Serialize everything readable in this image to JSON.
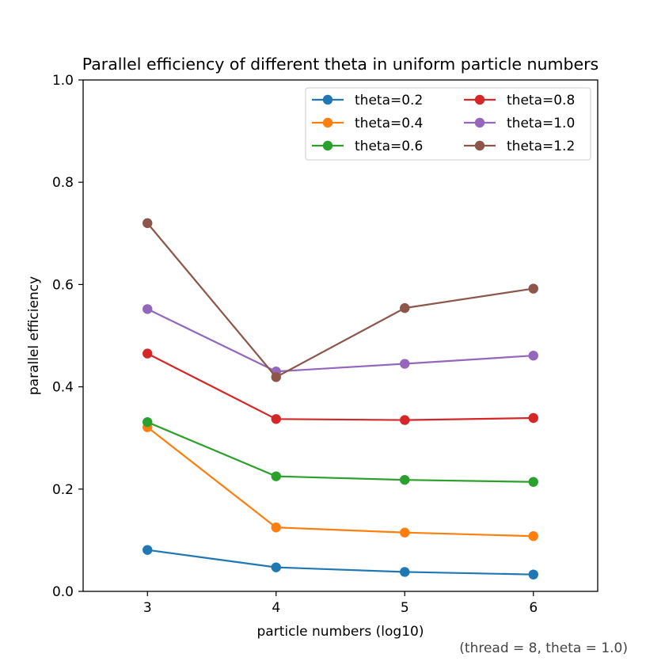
{
  "chart_data": {
    "type": "line",
    "title": "Parallel efficiency of different theta in uniform particle numbers",
    "xlabel": "particle numbers (log10)",
    "ylabel": "parallel efficiency",
    "footnote": "(thread = 8, theta = 1.0)",
    "x": [
      3,
      4,
      5,
      6
    ],
    "xlim": [
      2.5,
      6.5
    ],
    "ylim": [
      0.0,
      1.0
    ],
    "xticks": [
      "3",
      "4",
      "5",
      "6"
    ],
    "yticks": [
      "0.0",
      "0.2",
      "0.4",
      "0.6",
      "0.8",
      "1.0"
    ],
    "grid": false,
    "legend_position": "top-right",
    "legend_columns": 2,
    "series": [
      {
        "name": "theta=0.2",
        "color": "#1f77b4",
        "values": [
          0.081,
          0.047,
          0.038,
          0.033
        ]
      },
      {
        "name": "theta=0.4",
        "color": "#ff7f0e",
        "values": [
          0.321,
          0.125,
          0.115,
          0.108
        ]
      },
      {
        "name": "theta=0.6",
        "color": "#2ca02c",
        "values": [
          0.331,
          0.225,
          0.218,
          0.214
        ]
      },
      {
        "name": "theta=0.8",
        "color": "#d62728",
        "values": [
          0.465,
          0.337,
          0.335,
          0.339
        ]
      },
      {
        "name": "theta=1.0",
        "color": "#9467bd",
        "values": [
          0.552,
          0.43,
          0.445,
          0.461
        ]
      },
      {
        "name": "theta=1.2",
        "color": "#8c564b",
        "values": [
          0.72,
          0.419,
          0.554,
          0.592
        ]
      }
    ]
  }
}
